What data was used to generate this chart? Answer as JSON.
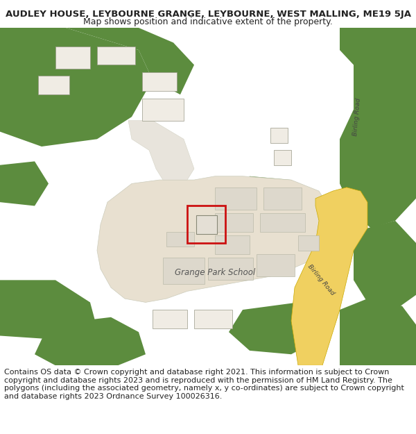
{
  "title_line1": "AUDLEY HOUSE, LEYBOURNE GRANGE, LEYBOURNE, WEST MALLING, ME19 5JA",
  "title_line2": "Map shows position and indicative extent of the property.",
  "footer_text": "Contains OS data © Crown copyright and database right 2021. This information is subject to Crown copyright and database rights 2023 and is reproduced with the permission of HM Land Registry. The polygons (including the associated geometry, namely x, y co-ordinates) are subject to Crown copyright and database rights 2023 Ordnance Survey 100026316.",
  "bg_color": "#ffffff",
  "map_bg": "#f8f8f5",
  "green_color": "#5c8c3e",
  "road_fill": "#f0d060",
  "road_edge": "#c8a800",
  "building_area": "#e8e0d0",
  "building_fill": "#ddd8cc",
  "building_edge": "#bbbbaa",
  "small_bldg_fill": "#f0ece4",
  "small_bldg_edge": "#999988",
  "red_outline": "#cc1111",
  "white": "#ffffff",
  "path_color": "#e8e4dc",
  "text_dark": "#222222",
  "text_label": "#555555",
  "road_text": "#444444",
  "title_fontsize": 9.5,
  "subtitle_fontsize": 9,
  "footer_fontsize": 8,
  "label_fontsize": 8.5,
  "road_label_fontsize": 6.5
}
